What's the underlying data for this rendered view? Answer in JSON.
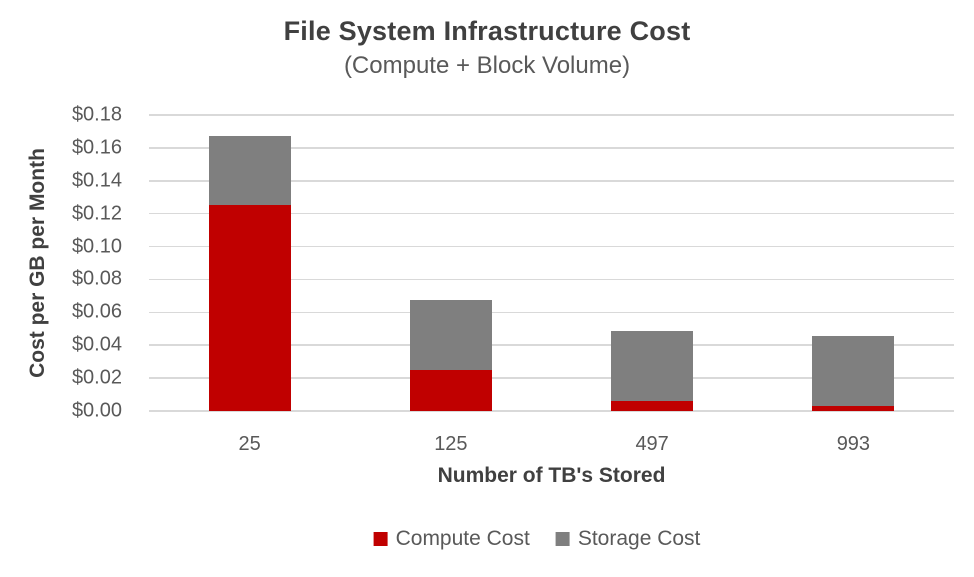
{
  "chart_data": {
    "type": "bar",
    "stacked": true,
    "title": "File System Infrastructure Cost",
    "subtitle": "(Compute + Block Volume)",
    "xlabel": "Number of TB's Stored",
    "ylabel": "Cost per GB per Month",
    "categories": [
      "25",
      "125",
      "497",
      "993"
    ],
    "series": [
      {
        "name": "Compute Cost",
        "color": "#c00000",
        "values": [
          0.125,
          0.025,
          0.0063,
          0.0031
        ]
      },
      {
        "name": "Storage Cost",
        "color": "#7f7f7f",
        "values": [
          0.0425,
          0.0425,
          0.0425,
          0.0425
        ]
      }
    ],
    "ylim": [
      0,
      0.18
    ],
    "ytick_step": 0.02,
    "yticks": [
      {
        "label": "$0.18",
        "value": 0.18
      },
      {
        "label": "$0.16",
        "value": 0.16
      },
      {
        "label": "$0.14",
        "value": 0.14
      },
      {
        "label": "$0.12",
        "value": 0.12
      },
      {
        "label": "$0.10",
        "value": 0.1
      },
      {
        "label": "$0.08",
        "value": 0.08
      },
      {
        "label": "$0.06",
        "value": 0.06
      },
      {
        "label": "$0.04",
        "value": 0.04
      },
      {
        "label": "$0.02",
        "value": 0.02
      },
      {
        "label": "$0.00",
        "value": 0.0
      }
    ],
    "grid": true,
    "legend_position": "bottom"
  },
  "colors": {
    "title_text": "#404040",
    "axis_text": "#595959",
    "gridline": "#d9d9d9",
    "compute_cost": "#c00000",
    "storage_cost": "#7f7f7f",
    "background": "#ffffff"
  }
}
